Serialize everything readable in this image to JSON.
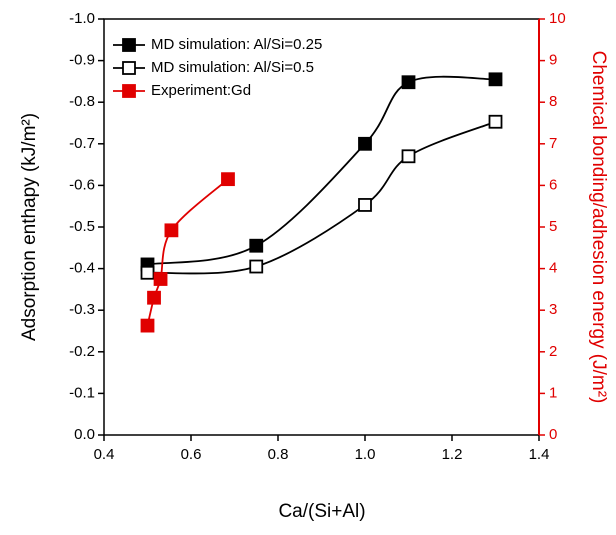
{
  "chart_data": {
    "type": "line",
    "x_label": "Ca/(Si+Al)",
    "y_label": "Adsorption enthapy (kJ/m²)",
    "y2_label": "Chemical bonding/adhesion energy (J/m²)",
    "xlim": [
      0.4,
      1.4
    ],
    "xticks": [
      0.4,
      0.6,
      0.8,
      {
        "value": 1,
        "label": "1.0"
      },
      1.2,
      1.4
    ],
    "ylim": [
      0,
      -1
    ],
    "yticks": [
      {
        "value": -1,
        "label": "-1.0"
      },
      -0.9,
      -0.8,
      -0.7,
      -0.6,
      -0.5,
      -0.4,
      -0.3,
      -0.2,
      -0.1,
      {
        "value": 0,
        "label": "0.0"
      }
    ],
    "y2lim": [
      0,
      10
    ],
    "y2ticks": [
      0,
      1,
      2,
      3,
      4,
      5,
      6,
      7,
      8,
      9,
      10
    ],
    "y2_color": "#e00000",
    "legend": "upper left",
    "series": [
      {
        "name": "MD simulation: Al/Si=0.25",
        "color": "#000000",
        "marker": "filled",
        "x": [
          0.5,
          0.75,
          1.0,
          1.1,
          1.3
        ],
        "values": [
          -0.41,
          -0.455,
          -0.7,
          -0.848,
          -0.855
        ]
      },
      {
        "name": "MD simulation: Al/Si=0.5",
        "color": "#000000",
        "marker": "open",
        "x": [
          0.5,
          0.75,
          1.0,
          1.1,
          1.3
        ],
        "values": [
          -0.39,
          -0.405,
          -0.553,
          -0.67,
          -0.753
        ]
      },
      {
        "name": "Experiment:Gd",
        "color": "#e00000",
        "marker": "filled",
        "axis": "y2",
        "x": [
          0.5,
          0.515,
          0.53,
          0.555,
          0.685
        ],
        "values": [
          2.63,
          3.3,
          3.75,
          4.92,
          6.15
        ]
      }
    ]
  }
}
